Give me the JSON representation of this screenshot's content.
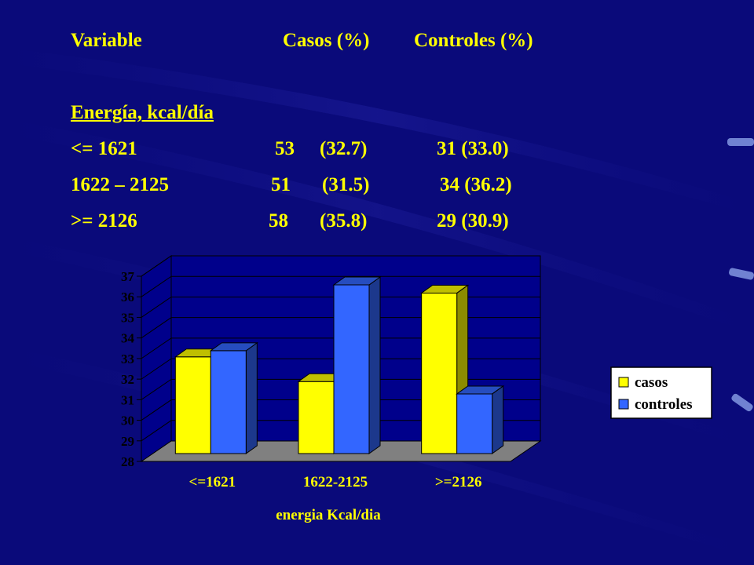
{
  "colors": {
    "background": "#0a0a7a",
    "text": "#ffff00",
    "casos": "#ffff00",
    "controles": "#3366ff",
    "plot_back": "#00008b",
    "floor": "#808080"
  },
  "table": {
    "header": {
      "variable": "Variable",
      "casos": "Casos (%)",
      "controles": "Controles (%)"
    },
    "section_title": "Energía, kcal/día",
    "rows": [
      {
        "label": "<= 1621",
        "casos_n": "53",
        "casos_pct": "(32.7)",
        "controles": "31 (33.0)"
      },
      {
        "label": "1622 – 2125",
        "casos_n": "51",
        "casos_pct": "(31.5)",
        "controles": "34 (36.2)"
      },
      {
        "label": ">= 2126",
        "casos_n": "58",
        "casos_pct": "(35.8)",
        "controles": "29 (30.9)"
      }
    ]
  },
  "chart_data": {
    "type": "bar",
    "categories": [
      "<=1621",
      "1622-2125",
      ">=2126"
    ],
    "series": [
      {
        "name": "casos",
        "values": [
          32.7,
          31.5,
          35.8
        ]
      },
      {
        "name": "controles",
        "values": [
          33.0,
          36.2,
          30.9
        ]
      }
    ],
    "xlabel": "energia Kcal/dia",
    "ylabel": "",
    "ylim": [
      28,
      37
    ],
    "yticks": [
      28,
      29,
      30,
      31,
      32,
      33,
      34,
      35,
      36,
      37
    ],
    "grid": true,
    "legend": "right",
    "style": "3d"
  }
}
